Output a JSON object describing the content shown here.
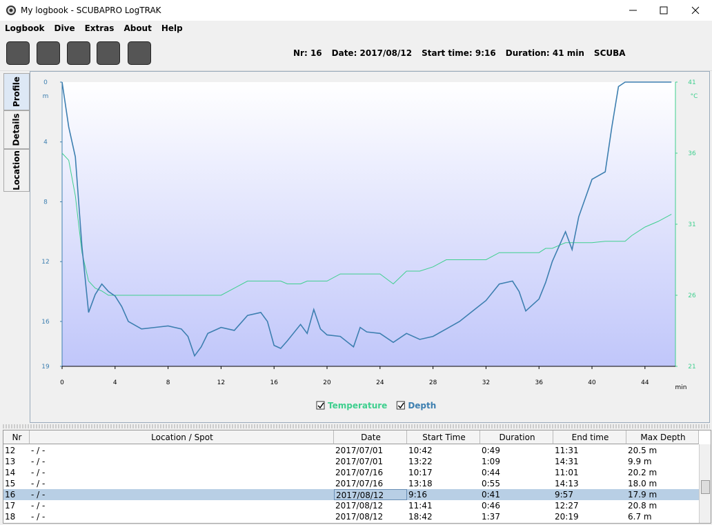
{
  "window": {
    "title": "My logbook - SCUBAPRO LogTRAK"
  },
  "menu": [
    "Logbook",
    "Dive",
    "Extras",
    "About",
    "Help"
  ],
  "dive_info": [
    "Nr: 16",
    "Date: 2017/08/12",
    "Start time: 9:16",
    "Duration: 41 min",
    "SCUBA"
  ],
  "tabs": [
    "Profile",
    "Details",
    "Location"
  ],
  "chart_data": {
    "type": "line",
    "x": [
      0,
      0.5,
      1,
      1.5,
      2,
      2.5,
      3,
      3.5,
      4,
      4.5,
      5,
      6,
      7,
      8,
      9,
      9.5,
      10,
      10.5,
      11,
      12,
      13,
      14,
      15,
      15.5,
      16,
      16.5,
      17,
      18,
      18.5,
      19,
      19.5,
      20,
      21,
      22,
      22.5,
      23,
      24,
      25,
      26,
      27,
      28,
      29,
      30,
      31,
      32,
      33,
      34,
      34.5,
      35,
      36,
      36.5,
      37,
      38,
      38.5,
      39,
      40,
      41,
      41.5,
      42,
      42.5,
      43,
      44,
      45,
      46
    ],
    "series": [
      {
        "name": "Temperature",
        "color": "#3ecf8e",
        "axis": "y2",
        "values": [
          36,
          35.5,
          33,
          29,
          27,
          26.5,
          26.3,
          26,
          26,
          26,
          26,
          26,
          26,
          26,
          26,
          26,
          26,
          26,
          26,
          26,
          26.5,
          27,
          27,
          27,
          27,
          27,
          26.8,
          26.8,
          27,
          27,
          27,
          27,
          27.5,
          27.5,
          27.5,
          27.5,
          27.5,
          26.8,
          27.7,
          27.7,
          28,
          28.5,
          28.5,
          28.5,
          28.5,
          29,
          29,
          29,
          29,
          29,
          29.3,
          29.3,
          29.7,
          29.7,
          29.7,
          29.7,
          29.8,
          29.8,
          29.8,
          29.8,
          30.2,
          30.8,
          31.2,
          31.7
        ]
      },
      {
        "name": "Depth",
        "color": "#3d7fb0",
        "values": [
          0,
          3,
          5,
          11,
          15.4,
          14.2,
          13.5,
          14,
          14.3,
          15,
          16,
          16.5,
          16.4,
          16.3,
          16.5,
          17,
          18.3,
          17.7,
          16.8,
          16.4,
          16.6,
          15.6,
          15.4,
          16,
          17.6,
          17.8,
          17.3,
          16.2,
          16.8,
          15.2,
          16.5,
          16.9,
          17,
          17.7,
          16.4,
          16.7,
          16.8,
          17.4,
          16.8,
          17.2,
          17,
          16.5,
          16,
          15.3,
          14.6,
          13.5,
          13.3,
          14,
          15.3,
          14.5,
          13.4,
          12,
          10,
          11.2,
          9,
          6.5,
          6,
          3,
          0.3,
          0,
          0,
          0,
          0,
          0
        ]
      }
    ],
    "xlim": [
      0,
      46.3
    ],
    "xticks": [
      0,
      4,
      8,
      12,
      16,
      20,
      24,
      28,
      32,
      36,
      40,
      44
    ],
    "x_label": "min",
    "ylim": [
      0,
      19
    ],
    "yticks": [
      0,
      4,
      8,
      12,
      16,
      19
    ],
    "y_reversed": true,
    "y_label": "m",
    "y2lim": [
      21,
      41
    ],
    "y2ticks": [
      21,
      26,
      31,
      36,
      41
    ],
    "y2_label": "°C"
  },
  "table": {
    "columns": [
      "Nr",
      "Location / Spot",
      "Date",
      "Start Time",
      "Duration",
      "End time",
      "Max Depth"
    ],
    "rows": [
      [
        "12",
        "- / -",
        "2017/07/01",
        "10:42",
        "0:49",
        "11:31",
        "20.5 m"
      ],
      [
        "13",
        "- / -",
        "2017/07/01",
        "13:22",
        "1:09",
        "14:31",
        "9.9 m"
      ],
      [
        "14",
        "- / -",
        "2017/07/16",
        "10:17",
        "0:44",
        "11:01",
        "20.2 m"
      ],
      [
        "15",
        "- / -",
        "2017/07/16",
        "13:18",
        "0:55",
        "14:13",
        "18.0 m"
      ],
      [
        "16",
        "- / -",
        "2017/08/12",
        "9:16",
        "0:41",
        "9:57",
        "17.9 m"
      ],
      [
        "17",
        "- / -",
        "2017/08/12",
        "11:41",
        "0:46",
        "12:27",
        "20.8 m"
      ],
      [
        "18",
        "- / -",
        "2017/08/12",
        "18:42",
        "1:37",
        "20:19",
        "6.7 m"
      ]
    ],
    "selected_row": 4
  }
}
